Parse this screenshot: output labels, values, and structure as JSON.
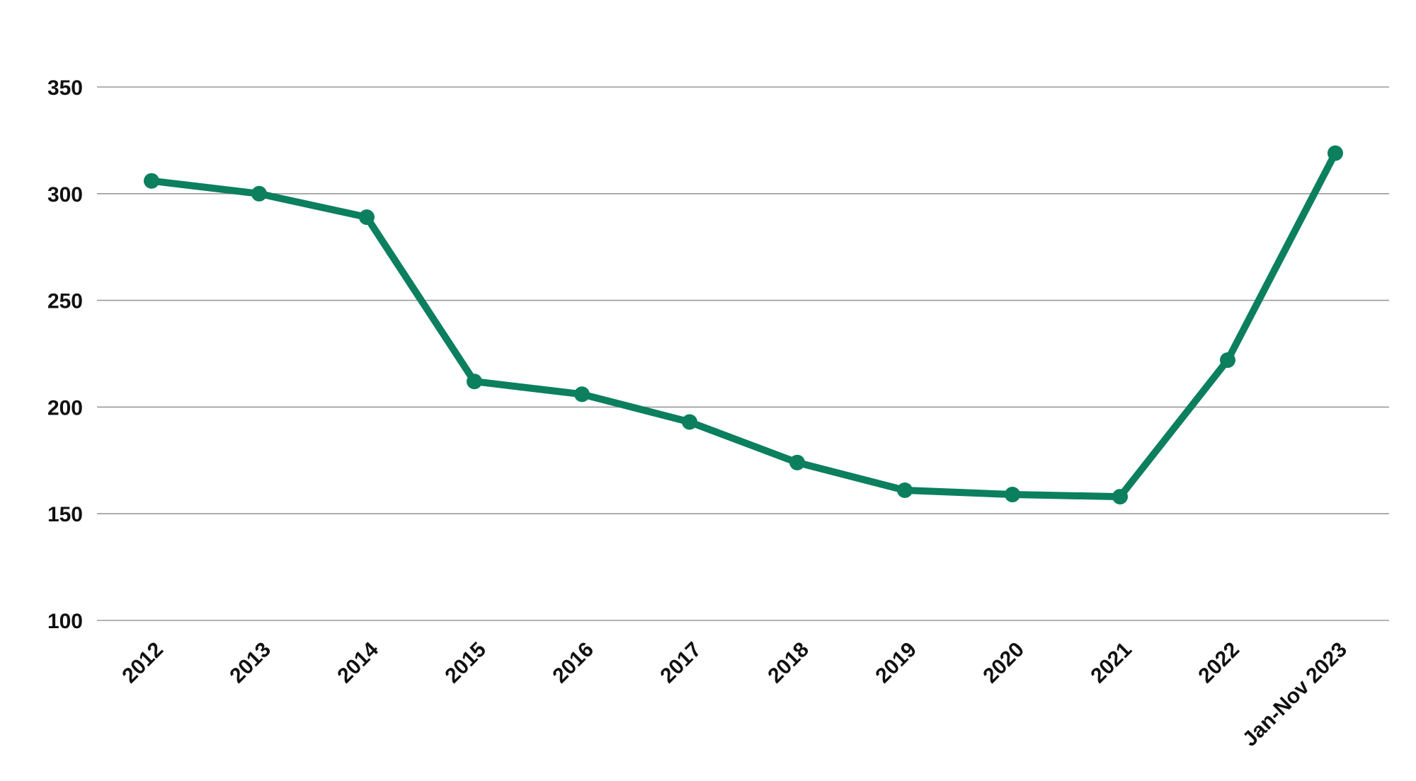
{
  "chart_data": {
    "type": "line",
    "title": "",
    "xlabel": "",
    "ylabel": "",
    "categories": [
      "2012",
      "2013",
      "2014",
      "2015",
      "2016",
      "2017",
      "2018",
      "2019",
      "2020",
      "2021",
      "2022",
      "Jan-Nov 2023"
    ],
    "series": [
      {
        "values": [
          306,
          300,
          289,
          212,
          206,
          193,
          174,
          161,
          159,
          158,
          222,
          319
        ],
        "color": "#0b7f5e"
      }
    ],
    "ylim": [
      100,
      350
    ],
    "yticks": [
      100,
      150,
      200,
      250,
      300,
      350
    ],
    "grid": true,
    "legend": "none",
    "markers": true
  }
}
